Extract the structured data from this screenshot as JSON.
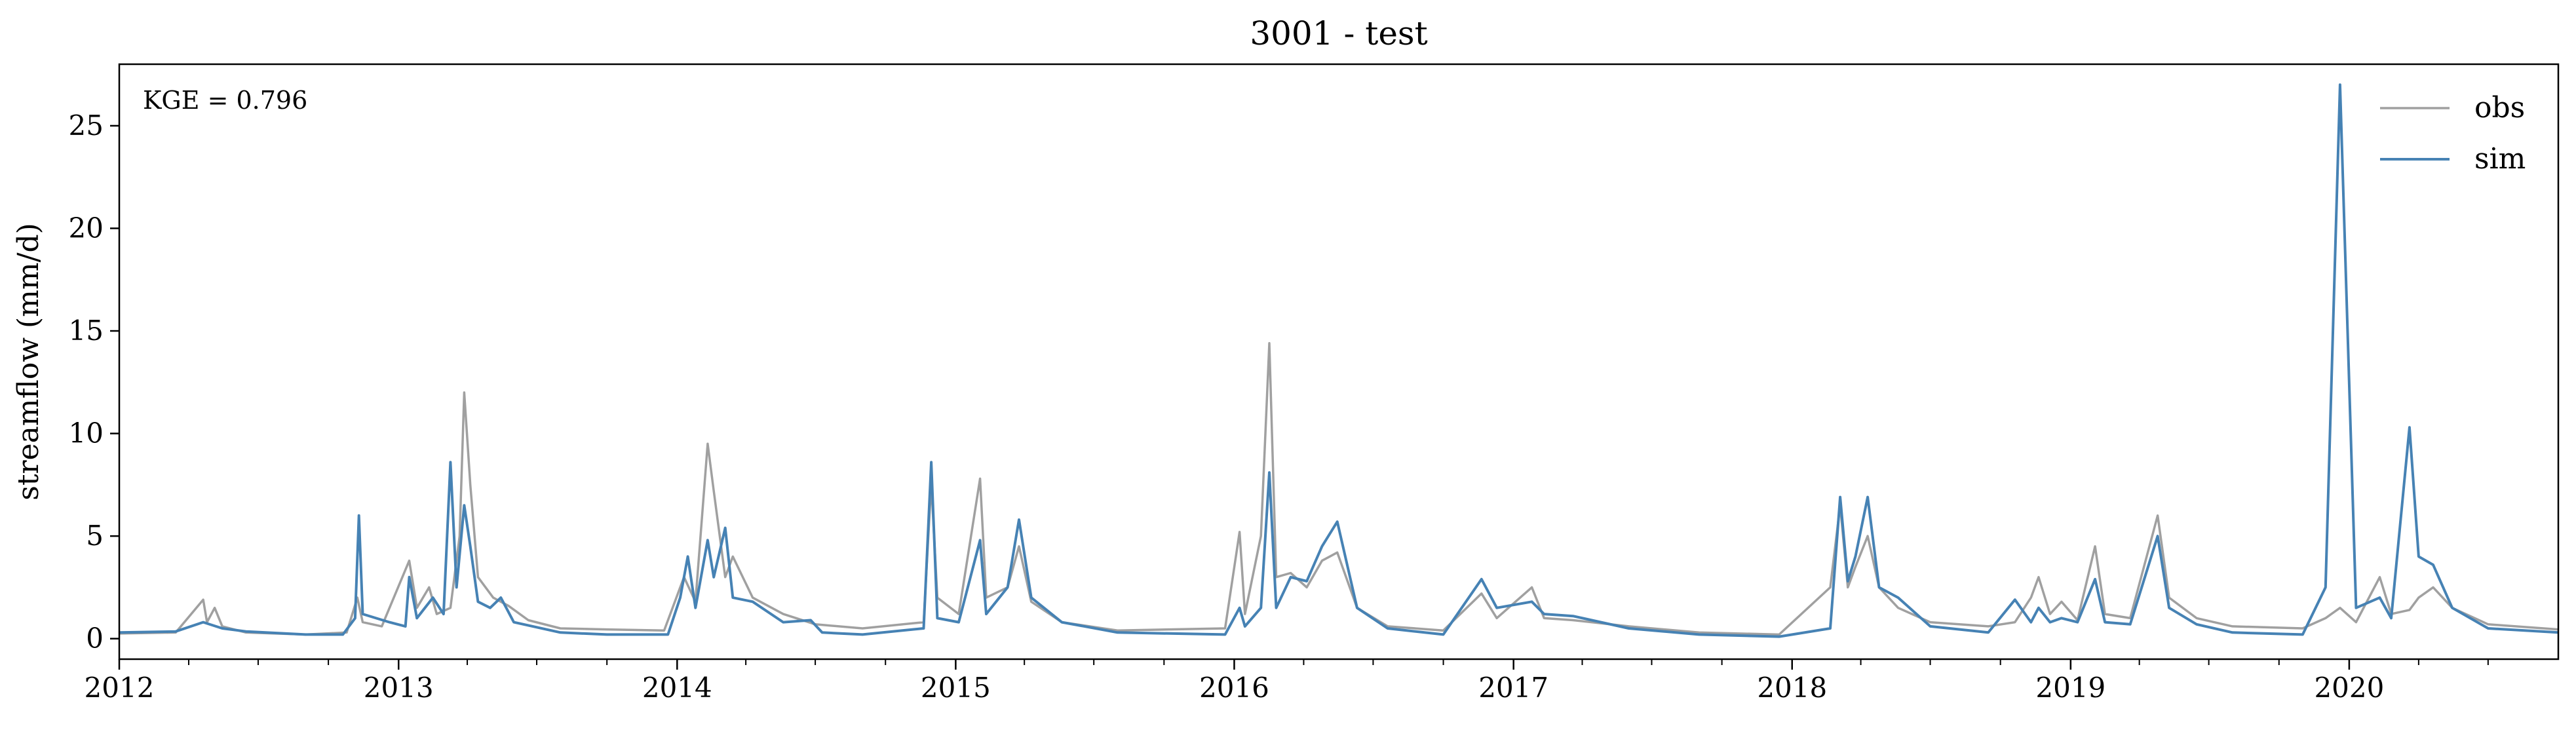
{
  "chart_data": {
    "type": "line",
    "title": "3001 - test",
    "xlabel": "",
    "ylabel": "streamflow (mm/d)",
    "xlim": [
      "2012-01-01",
      "2020-10-01"
    ],
    "ylim": [
      -1.0,
      28.0
    ],
    "x_ticks": [
      {
        "date": "2012-01-01",
        "label": "2012"
      },
      {
        "date": "2013-01-01",
        "label": "2013"
      },
      {
        "date": "2014-01-01",
        "label": "2014"
      },
      {
        "date": "2015-01-01",
        "label": "2015"
      },
      {
        "date": "2016-01-01",
        "label": "2016"
      },
      {
        "date": "2017-01-01",
        "label": "2017"
      },
      {
        "date": "2018-01-01",
        "label": "2018"
      },
      {
        "date": "2019-01-01",
        "label": "2019"
      },
      {
        "date": "2020-01-01",
        "label": "2020"
      }
    ],
    "y_ticks": [
      0,
      5,
      10,
      15,
      20,
      25
    ],
    "annotation": "KGE = 0.796",
    "legend_position": "top-right",
    "grid": false,
    "series": [
      {
        "name": "obs",
        "color": "#a0a0a0",
        "points": [
          [
            "2012-01-01",
            0.25
          ],
          [
            "2012-03-15",
            0.3
          ],
          [
            "2012-04-20",
            1.9
          ],
          [
            "2012-04-25",
            0.8
          ],
          [
            "2012-05-05",
            1.5
          ],
          [
            "2012-05-15",
            0.6
          ],
          [
            "2012-06-15",
            0.3
          ],
          [
            "2012-09-01",
            0.2
          ],
          [
            "2012-10-25",
            0.3
          ],
          [
            "2012-11-08",
            2.0
          ],
          [
            "2012-11-15",
            0.8
          ],
          [
            "2012-12-10",
            0.6
          ],
          [
            "2013-01-15",
            3.8
          ],
          [
            "2013-01-25",
            1.5
          ],
          [
            "2013-02-10",
            2.5
          ],
          [
            "2013-02-20",
            1.2
          ],
          [
            "2013-03-10",
            1.5
          ],
          [
            "2013-03-22",
            5.0
          ],
          [
            "2013-03-28",
            12.0
          ],
          [
            "2013-04-05",
            7.5
          ],
          [
            "2013-04-15",
            3.0
          ],
          [
            "2013-05-05",
            2.0
          ],
          [
            "2013-05-25",
            1.6
          ],
          [
            "2013-06-20",
            0.9
          ],
          [
            "2013-08-01",
            0.5
          ],
          [
            "2013-10-01",
            0.45
          ],
          [
            "2013-12-15",
            0.4
          ],
          [
            "2014-01-10",
            3.0
          ],
          [
            "2014-01-25",
            1.8
          ],
          [
            "2014-02-10",
            9.5
          ],
          [
            "2014-02-18",
            7.2
          ],
          [
            "2014-03-05",
            3.0
          ],
          [
            "2014-03-15",
            4.0
          ],
          [
            "2014-04-10",
            2.0
          ],
          [
            "2014-05-20",
            1.2
          ],
          [
            "2014-07-01",
            0.7
          ],
          [
            "2014-09-01",
            0.5
          ],
          [
            "2014-11-20",
            0.8
          ],
          [
            "2014-11-30",
            7.6
          ],
          [
            "2014-12-08",
            2.0
          ],
          [
            "2015-01-05",
            1.2
          ],
          [
            "2015-02-02",
            7.8
          ],
          [
            "2015-02-10",
            2.0
          ],
          [
            "2015-03-10",
            2.5
          ],
          [
            "2015-03-25",
            4.5
          ],
          [
            "2015-04-10",
            1.8
          ],
          [
            "2015-05-20",
            0.8
          ],
          [
            "2015-08-01",
            0.4
          ],
          [
            "2015-12-20",
            0.5
          ],
          [
            "2016-01-08",
            5.2
          ],
          [
            "2016-01-15",
            1.2
          ],
          [
            "2016-02-05",
            5.0
          ],
          [
            "2016-02-16",
            14.4
          ],
          [
            "2016-02-25",
            3.0
          ],
          [
            "2016-03-15",
            3.2
          ],
          [
            "2016-04-05",
            2.5
          ],
          [
            "2016-04-25",
            3.8
          ],
          [
            "2016-05-15",
            4.2
          ],
          [
            "2016-06-10",
            1.5
          ],
          [
            "2016-07-20",
            0.6
          ],
          [
            "2016-10-01",
            0.4
          ],
          [
            "2016-11-20",
            2.2
          ],
          [
            "2016-12-10",
            1.0
          ],
          [
            "2017-01-25",
            2.5
          ],
          [
            "2017-02-10",
            1.0
          ],
          [
            "2017-03-20",
            0.9
          ],
          [
            "2017-06-01",
            0.6
          ],
          [
            "2017-09-01",
            0.3
          ],
          [
            "2017-12-15",
            0.2
          ],
          [
            "2018-02-20",
            2.5
          ],
          [
            "2018-03-05",
            6.5
          ],
          [
            "2018-03-15",
            2.5
          ],
          [
            "2018-03-25",
            3.5
          ],
          [
            "2018-04-10",
            5.0
          ],
          [
            "2018-04-25",
            2.5
          ],
          [
            "2018-05-20",
            1.5
          ],
          [
            "2018-07-01",
            0.8
          ],
          [
            "2018-09-15",
            0.6
          ],
          [
            "2018-10-20",
            0.8
          ],
          [
            "2018-11-10",
            2.0
          ],
          [
            "2018-11-20",
            3.0
          ],
          [
            "2018-12-05",
            1.2
          ],
          [
            "2018-12-20",
            1.8
          ],
          [
            "2019-01-10",
            0.9
          ],
          [
            "2019-02-02",
            4.5
          ],
          [
            "2019-02-15",
            1.2
          ],
          [
            "2019-03-20",
            1.0
          ],
          [
            "2019-04-25",
            6.0
          ],
          [
            "2019-05-10",
            2.0
          ],
          [
            "2019-06-15",
            1.0
          ],
          [
            "2019-08-01",
            0.6
          ],
          [
            "2019-11-01",
            0.5
          ],
          [
            "2019-12-01",
            1.0
          ],
          [
            "2019-12-20",
            1.5
          ],
          [
            "2020-01-10",
            0.8
          ],
          [
            "2020-02-10",
            3.0
          ],
          [
            "2020-02-25",
            1.2
          ],
          [
            "2020-03-20",
            1.4
          ],
          [
            "2020-04-01",
            2.0
          ],
          [
            "2020-04-20",
            2.5
          ],
          [
            "2020-05-15",
            1.5
          ],
          [
            "2020-07-01",
            0.7
          ],
          [
            "2020-10-01",
            0.45
          ]
        ]
      },
      {
        "name": "sim",
        "color": "#4682b4",
        "points": [
          [
            "2012-01-01",
            0.3
          ],
          [
            "2012-03-15",
            0.35
          ],
          [
            "2012-04-20",
            0.8
          ],
          [
            "2012-05-15",
            0.5
          ],
          [
            "2012-06-15",
            0.35
          ],
          [
            "2012-09-01",
            0.2
          ],
          [
            "2012-10-20",
            0.2
          ],
          [
            "2012-11-05",
            1.0
          ],
          [
            "2012-11-10",
            6.0
          ],
          [
            "2012-11-15",
            1.2
          ],
          [
            "2012-12-20",
            0.8
          ],
          [
            "2013-01-10",
            0.6
          ],
          [
            "2013-01-15",
            3.0
          ],
          [
            "2013-01-25",
            1.0
          ],
          [
            "2013-02-15",
            2.0
          ],
          [
            "2013-03-01",
            1.2
          ],
          [
            "2013-03-10",
            8.6
          ],
          [
            "2013-03-18",
            2.5
          ],
          [
            "2013-03-28",
            6.5
          ],
          [
            "2013-04-05",
            4.5
          ],
          [
            "2013-04-15",
            1.8
          ],
          [
            "2013-05-01",
            1.5
          ],
          [
            "2013-05-15",
            2.0
          ],
          [
            "2013-06-01",
            0.8
          ],
          [
            "2013-08-01",
            0.3
          ],
          [
            "2013-10-01",
            0.2
          ],
          [
            "2013-12-20",
            0.2
          ],
          [
            "2014-01-05",
            2.0
          ],
          [
            "2014-01-15",
            4.0
          ],
          [
            "2014-01-25",
            1.5
          ],
          [
            "2014-02-10",
            4.8
          ],
          [
            "2014-02-18",
            3.0
          ],
          [
            "2014-03-05",
            5.4
          ],
          [
            "2014-03-15",
            2.0
          ],
          [
            "2014-04-10",
            1.8
          ],
          [
            "2014-05-20",
            0.8
          ],
          [
            "2014-06-25",
            0.9
          ],
          [
            "2014-07-10",
            0.3
          ],
          [
            "2014-09-01",
            0.2
          ],
          [
            "2014-11-20",
            0.5
          ],
          [
            "2014-11-30",
            8.6
          ],
          [
            "2014-12-08",
            1.0
          ],
          [
            "2015-01-05",
            0.8
          ],
          [
            "2015-02-02",
            4.8
          ],
          [
            "2015-02-10",
            1.2
          ],
          [
            "2015-03-10",
            2.5
          ],
          [
            "2015-03-25",
            5.8
          ],
          [
            "2015-04-10",
            2.0
          ],
          [
            "2015-05-20",
            0.8
          ],
          [
            "2015-08-01",
            0.3
          ],
          [
            "2015-12-20",
            0.2
          ],
          [
            "2016-01-08",
            1.5
          ],
          [
            "2016-01-15",
            0.6
          ],
          [
            "2016-02-05",
            1.5
          ],
          [
            "2016-02-16",
            8.1
          ],
          [
            "2016-02-25",
            1.5
          ],
          [
            "2016-03-15",
            3.0
          ],
          [
            "2016-04-05",
            2.8
          ],
          [
            "2016-04-25",
            4.5
          ],
          [
            "2016-05-15",
            5.7
          ],
          [
            "2016-06-10",
            1.5
          ],
          [
            "2016-07-20",
            0.5
          ],
          [
            "2016-10-01",
            0.2
          ],
          [
            "2016-11-20",
            2.9
          ],
          [
            "2016-12-10",
            1.5
          ],
          [
            "2017-01-25",
            1.8
          ],
          [
            "2017-02-10",
            1.2
          ],
          [
            "2017-03-20",
            1.1
          ],
          [
            "2017-06-01",
            0.5
          ],
          [
            "2017-09-01",
            0.2
          ],
          [
            "2017-12-15",
            0.1
          ],
          [
            "2018-02-20",
            0.5
          ],
          [
            "2018-03-05",
            6.9
          ],
          [
            "2018-03-15",
            2.8
          ],
          [
            "2018-03-25",
            4.0
          ],
          [
            "2018-04-10",
            6.9
          ],
          [
            "2018-04-25",
            2.5
          ],
          [
            "2018-05-20",
            2.0
          ],
          [
            "2018-07-01",
            0.6
          ],
          [
            "2018-09-15",
            0.3
          ],
          [
            "2018-10-20",
            1.9
          ],
          [
            "2018-11-10",
            0.8
          ],
          [
            "2018-11-20",
            1.5
          ],
          [
            "2018-12-05",
            0.8
          ],
          [
            "2018-12-20",
            1.0
          ],
          [
            "2019-01-10",
            0.8
          ],
          [
            "2019-02-02",
            2.9
          ],
          [
            "2019-02-15",
            0.8
          ],
          [
            "2019-03-20",
            0.7
          ],
          [
            "2019-04-25",
            5.0
          ],
          [
            "2019-05-10",
            1.5
          ],
          [
            "2019-06-15",
            0.7
          ],
          [
            "2019-08-01",
            0.3
          ],
          [
            "2019-11-01",
            0.2
          ],
          [
            "2019-12-01",
            2.5
          ],
          [
            "2019-12-20",
            27.0
          ],
          [
            "2020-01-10",
            1.5
          ],
          [
            "2020-02-10",
            2.0
          ],
          [
            "2020-02-25",
            1.0
          ],
          [
            "2020-03-20",
            10.3
          ],
          [
            "2020-04-01",
            4.0
          ],
          [
            "2020-04-20",
            3.6
          ],
          [
            "2020-05-15",
            1.5
          ],
          [
            "2020-07-01",
            0.5
          ],
          [
            "2020-10-01",
            0.3
          ]
        ]
      }
    ]
  }
}
